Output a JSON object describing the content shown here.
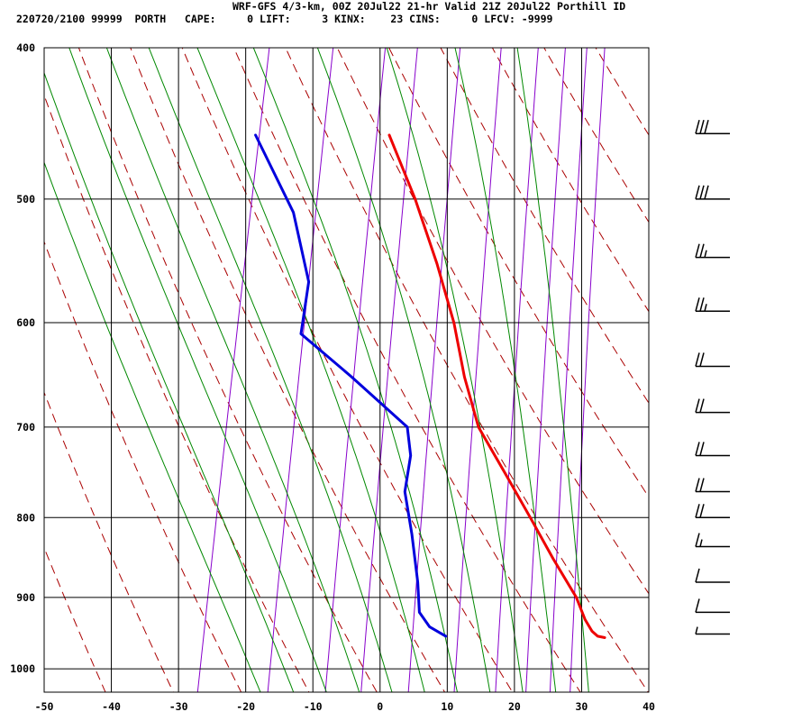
{
  "header": {
    "line1": "WRF-GFS 4/3-km, 00Z 20Jul22 21-hr Valid 21Z 20Jul22 Porthill ID",
    "line2": "220720/2100 99999  PORTH   CAPE:     0 LIFT:     3 KINX:    23 CINS:     0 LFCV: -9999"
  },
  "colors": {
    "temperature": "#ee0000",
    "dewpoint": "#0000dd",
    "dry_adiabat": "#aa0000",
    "moist_adiabat": "#008800",
    "mixing_ratio": "#8800cc",
    "grid": "#000000",
    "wind_barb": "#000000"
  },
  "chart_data": {
    "type": "line",
    "title": "",
    "xlabel": "",
    "ylabel": "",
    "xlim": [
      -50,
      40
    ],
    "ylim": [
      1035,
      400
    ],
    "y_scale": "log (pressure, inverted)",
    "x_ticks": [
      "-50",
      "-40",
      "-30",
      "-20",
      "-10",
      "0",
      "10",
      "20",
      "30",
      "40"
    ],
    "y_ticks": [
      "400",
      "500",
      "600",
      "700",
      "800",
      "900",
      "1000"
    ],
    "grid": true,
    "series": [
      {
        "name": "",
        "role": "temperature",
        "points": [
          {
            "p": 955,
            "t": 31.7
          },
          {
            "p": 953,
            "t": 30.6
          },
          {
            "p": 946,
            "t": 29.6
          },
          {
            "p": 930,
            "t": 28.2
          },
          {
            "p": 900,
            "t": 26.2
          },
          {
            "p": 850,
            "t": 21.5
          },
          {
            "p": 800,
            "t": 16.8
          },
          {
            "p": 750,
            "t": 11.7
          },
          {
            "p": 700,
            "t": 6.2
          },
          {
            "p": 650,
            "t": 2.5
          },
          {
            "p": 600,
            "t": -0.8
          },
          {
            "p": 550,
            "t": -5.2
          },
          {
            "p": 500,
            "t": -10.5
          },
          {
            "p": 455,
            "t": -16.4
          }
        ]
      },
      {
        "name": "",
        "role": "dewpoint",
        "points": [
          {
            "p": 953,
            "t": 8.0
          },
          {
            "p": 940,
            "t": 5.3
          },
          {
            "p": 920,
            "t": 3.3
          },
          {
            "p": 880,
            "t": 2.1
          },
          {
            "p": 820,
            "t": -0.3
          },
          {
            "p": 770,
            "t": -2.7
          },
          {
            "p": 730,
            "t": -3.0
          },
          {
            "p": 700,
            "t": -4.4
          },
          {
            "p": 650,
            "t": -14.3
          },
          {
            "p": 610,
            "t": -23.2
          },
          {
            "p": 565,
            "t": -23.7
          },
          {
            "p": 510,
            "t": -28.2
          },
          {
            "p": 455,
            "t": -36.3
          }
        ]
      }
    ],
    "dry_adiabats_theta_K": [
      230,
      240,
      250,
      260,
      270,
      280,
      290,
      300,
      310,
      320,
      330,
      340,
      350,
      360,
      370,
      380,
      390,
      400,
      410,
      420,
      430,
      440,
      450,
      460,
      470
    ],
    "moist_adiabats_theta_w_C": [
      -20,
      -15,
      -10,
      -5,
      0,
      5,
      10,
      15,
      20,
      25,
      30
    ],
    "mixing_ratio_lines_g_per_kg": [
      0.4,
      1,
      2,
      3,
      5,
      8,
      12,
      16,
      20,
      24
    ],
    "wind_barbs": [
      {
        "p": 454,
        "speed_kt": 30
      },
      {
        "p": 500,
        "speed_kt": 30
      },
      {
        "p": 545,
        "speed_kt": 25
      },
      {
        "p": 590,
        "speed_kt": 25
      },
      {
        "p": 640,
        "speed_kt": 20
      },
      {
        "p": 685,
        "speed_kt": 20
      },
      {
        "p": 730,
        "speed_kt": 20
      },
      {
        "p": 770,
        "speed_kt": 20
      },
      {
        "p": 800,
        "speed_kt": 20
      },
      {
        "p": 835,
        "speed_kt": 15
      },
      {
        "p": 880,
        "speed_kt": 10
      },
      {
        "p": 920,
        "speed_kt": 10
      },
      {
        "p": 950,
        "speed_kt": 5
      }
    ]
  }
}
